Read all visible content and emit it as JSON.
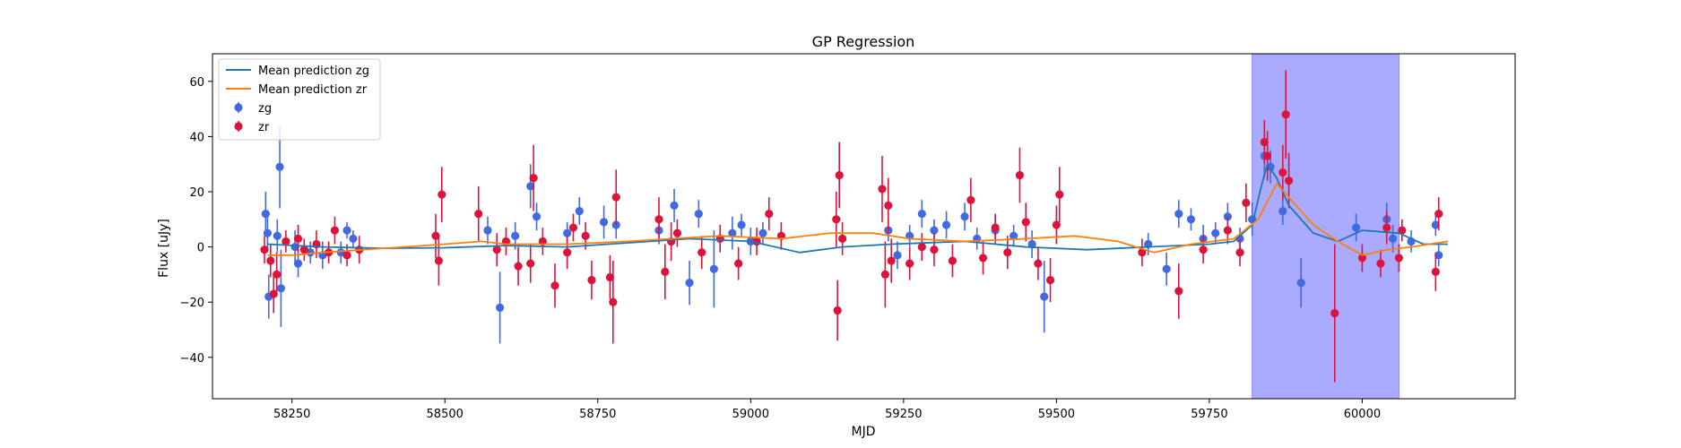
{
  "chart_data": {
    "type": "scatter",
    "title": "GP Regression",
    "xlabel": "MJD",
    "ylabel": "Flux [uJy]",
    "xlim": [
      58120,
      60250
    ],
    "ylim": [
      -55,
      70
    ],
    "x_ticks": [
      58250,
      58500,
      58750,
      59000,
      59250,
      59500,
      59750,
      60000
    ],
    "y_ticks": [
      -40,
      -20,
      0,
      20,
      40,
      60
    ],
    "grid": false,
    "legend_position": "top-left",
    "colors": {
      "zg_points": "#4169e1",
      "zr_points": "#dc143c",
      "zg_line": "#1f77b4",
      "zr_line": "#ff7f0e",
      "shade": "#aaaaff"
    },
    "shaded_region": {
      "x_start": 59820,
      "x_end": 60060
    },
    "lines": [
      {
        "name": "Mean prediction zg",
        "color": "#1f77b4",
        "points": [
          [
            58210,
            1
          ],
          [
            58300,
            0
          ],
          [
            58400,
            -0.5
          ],
          [
            58500,
            -0.3
          ],
          [
            58600,
            0.5
          ],
          [
            58700,
            0
          ],
          [
            58800,
            1.5
          ],
          [
            58900,
            3
          ],
          [
            59000,
            2
          ],
          [
            59080,
            -2
          ],
          [
            59150,
            0
          ],
          [
            59230,
            1
          ],
          [
            59350,
            2
          ],
          [
            59450,
            0
          ],
          [
            59550,
            -1
          ],
          [
            59650,
            0
          ],
          [
            59750,
            1
          ],
          [
            59790,
            2
          ],
          [
            59820,
            8
          ],
          [
            59835,
            22
          ],
          [
            59845,
            30
          ],
          [
            59860,
            25
          ],
          [
            59880,
            15
          ],
          [
            59920,
            5
          ],
          [
            59960,
            2
          ],
          [
            60000,
            6
          ],
          [
            60060,
            5
          ],
          [
            60100,
            1
          ],
          [
            60140,
            1
          ]
        ]
      },
      {
        "name": "Mean prediction zr",
        "color": "#ff7f0e",
        "points": [
          [
            58210,
            -3
          ],
          [
            58250,
            -3
          ],
          [
            58300,
            -2
          ],
          [
            58400,
            -0.5
          ],
          [
            58500,
            1
          ],
          [
            58560,
            2
          ],
          [
            58600,
            1
          ],
          [
            58700,
            1
          ],
          [
            58800,
            2
          ],
          [
            58870,
            3
          ],
          [
            58950,
            4
          ],
          [
            59050,
            3
          ],
          [
            59130,
            5
          ],
          [
            59200,
            5
          ],
          [
            59260,
            3
          ],
          [
            59350,
            2
          ],
          [
            59450,
            3
          ],
          [
            59530,
            4
          ],
          [
            59600,
            2
          ],
          [
            59660,
            -2
          ],
          [
            59720,
            1
          ],
          [
            59790,
            3
          ],
          [
            59830,
            10
          ],
          [
            59860,
            23
          ],
          [
            59880,
            18
          ],
          [
            59920,
            8
          ],
          [
            59960,
            2
          ],
          [
            60000,
            -3
          ],
          [
            60040,
            -1
          ],
          [
            60080,
            0
          ],
          [
            60140,
            2
          ]
        ]
      }
    ],
    "series": [
      {
        "name": "zg",
        "color": "#4169e1",
        "points": [
          [
            58207,
            12,
            8
          ],
          [
            58210,
            5,
            6
          ],
          [
            58212,
            -18,
            8
          ],
          [
            58226,
            4,
            6
          ],
          [
            58230,
            29,
            15
          ],
          [
            58232,
            -15,
            14
          ],
          [
            58255,
            0,
            6
          ],
          [
            58260,
            -6,
            5
          ],
          [
            58280,
            -2,
            4
          ],
          [
            58300,
            -3,
            5
          ],
          [
            58330,
            -2,
            4
          ],
          [
            58340,
            6,
            3
          ],
          [
            58350,
            3,
            3
          ],
          [
            58570,
            6,
            5
          ],
          [
            58590,
            -22,
            13
          ],
          [
            58615,
            4,
            5
          ],
          [
            58640,
            22,
            8
          ],
          [
            58650,
            11,
            5
          ],
          [
            58700,
            5,
            4
          ],
          [
            58720,
            13,
            5
          ],
          [
            58760,
            9,
            6
          ],
          [
            58780,
            8,
            5
          ],
          [
            58850,
            6,
            5
          ],
          [
            58875,
            15,
            6
          ],
          [
            58900,
            -13,
            8
          ],
          [
            58915,
            12,
            5
          ],
          [
            58940,
            -8,
            14
          ],
          [
            58970,
            5,
            6
          ],
          [
            58985,
            8,
            4
          ],
          [
            59000,
            2,
            5
          ],
          [
            59020,
            5,
            4
          ],
          [
            59225,
            6,
            4
          ],
          [
            59240,
            -3,
            5
          ],
          [
            59260,
            4,
            4
          ],
          [
            59280,
            12,
            5
          ],
          [
            59300,
            6,
            4
          ],
          [
            59320,
            8,
            5
          ],
          [
            59350,
            11,
            5
          ],
          [
            59370,
            3,
            4
          ],
          [
            59400,
            6,
            5
          ],
          [
            59430,
            4,
            4
          ],
          [
            59460,
            1,
            5
          ],
          [
            59480,
            -18,
            13
          ],
          [
            59650,
            1,
            4
          ],
          [
            59680,
            -8,
            6
          ],
          [
            59700,
            12,
            5
          ],
          [
            59720,
            10,
            4
          ],
          [
            59740,
            3,
            5
          ],
          [
            59760,
            5,
            4
          ],
          [
            59780,
            11,
            5
          ],
          [
            59800,
            3,
            4
          ],
          [
            59820,
            10,
            6
          ],
          [
            59840,
            33,
            8
          ],
          [
            59850,
            29,
            6
          ],
          [
            59870,
            13,
            5
          ],
          [
            59900,
            -13,
            9
          ],
          [
            59990,
            7,
            5
          ],
          [
            60040,
            10,
            6
          ],
          [
            60050,
            3,
            5
          ],
          [
            60080,
            2,
            4
          ],
          [
            60120,
            8,
            4
          ],
          [
            60125,
            -3,
            4
          ]
        ]
      },
      {
        "name": "zr",
        "color": "#dc143c",
        "points": [
          [
            58205,
            -1,
            5
          ],
          [
            58215,
            -5,
            6
          ],
          [
            58220,
            -17,
            7
          ],
          [
            58225,
            -10,
            8
          ],
          [
            58240,
            2,
            4
          ],
          [
            58260,
            3,
            5
          ],
          [
            58270,
            -1,
            4
          ],
          [
            58290,
            1,
            5
          ],
          [
            58310,
            -2,
            4
          ],
          [
            58320,
            6,
            5
          ],
          [
            58340,
            -3,
            4
          ],
          [
            58360,
            -1,
            5
          ],
          [
            58485,
            4,
            8
          ],
          [
            58490,
            -5,
            9
          ],
          [
            58495,
            19,
            10
          ],
          [
            58555,
            12,
            10
          ],
          [
            58585,
            -1,
            6
          ],
          [
            58600,
            2,
            5
          ],
          [
            58620,
            -7,
            7
          ],
          [
            58640,
            -6,
            7
          ],
          [
            58645,
            25,
            12
          ],
          [
            58660,
            2,
            5
          ],
          [
            58680,
            -14,
            8
          ],
          [
            58700,
            -2,
            6
          ],
          [
            58710,
            7,
            5
          ],
          [
            58730,
            4,
            5
          ],
          [
            58740,
            -12,
            7
          ],
          [
            58770,
            -11,
            8
          ],
          [
            58775,
            -20,
            15
          ],
          [
            58780,
            18,
            10
          ],
          [
            58850,
            10,
            8
          ],
          [
            58860,
            -9,
            10
          ],
          [
            58870,
            2,
            7
          ],
          [
            58880,
            5,
            5
          ],
          [
            58920,
            -2,
            6
          ],
          [
            58950,
            3,
            5
          ],
          [
            58980,
            -6,
            6
          ],
          [
            59010,
            2,
            5
          ],
          [
            59030,
            12,
            6
          ],
          [
            59050,
            4,
            5
          ],
          [
            59140,
            10,
            10
          ],
          [
            59142,
            -23,
            11
          ],
          [
            59145,
            26,
            12
          ],
          [
            59150,
            3,
            6
          ],
          [
            59215,
            21,
            12
          ],
          [
            59220,
            -10,
            12
          ],
          [
            59225,
            15,
            10
          ],
          [
            59230,
            -5,
            8
          ],
          [
            59260,
            -6,
            6
          ],
          [
            59280,
            0,
            5
          ],
          [
            59300,
            -1,
            6
          ],
          [
            59330,
            -5,
            6
          ],
          [
            59360,
            17,
            8
          ],
          [
            59380,
            -4,
            6
          ],
          [
            59400,
            7,
            5
          ],
          [
            59420,
            -2,
            6
          ],
          [
            59440,
            26,
            10
          ],
          [
            59450,
            9,
            7
          ],
          [
            59470,
            -6,
            6
          ],
          [
            59490,
            -12,
            8
          ],
          [
            59500,
            8,
            7
          ],
          [
            59505,
            19,
            10
          ],
          [
            59640,
            -2,
            5
          ],
          [
            59700,
            -16,
            10
          ],
          [
            59740,
            -1,
            5
          ],
          [
            59780,
            6,
            5
          ],
          [
            59800,
            -2,
            5
          ],
          [
            59810,
            16,
            7
          ],
          [
            59840,
            38,
            8
          ],
          [
            59845,
            33,
            9
          ],
          [
            59870,
            27,
            10
          ],
          [
            59875,
            48,
            16
          ],
          [
            59880,
            24,
            10
          ],
          [
            59955,
            -24,
            25
          ],
          [
            60000,
            -4,
            5
          ],
          [
            60030,
            -6,
            5
          ],
          [
            60040,
            7,
            6
          ],
          [
            60060,
            -4,
            5
          ],
          [
            60065,
            6,
            4
          ],
          [
            60120,
            -9,
            7
          ],
          [
            60125,
            12,
            6
          ]
        ]
      }
    ]
  }
}
